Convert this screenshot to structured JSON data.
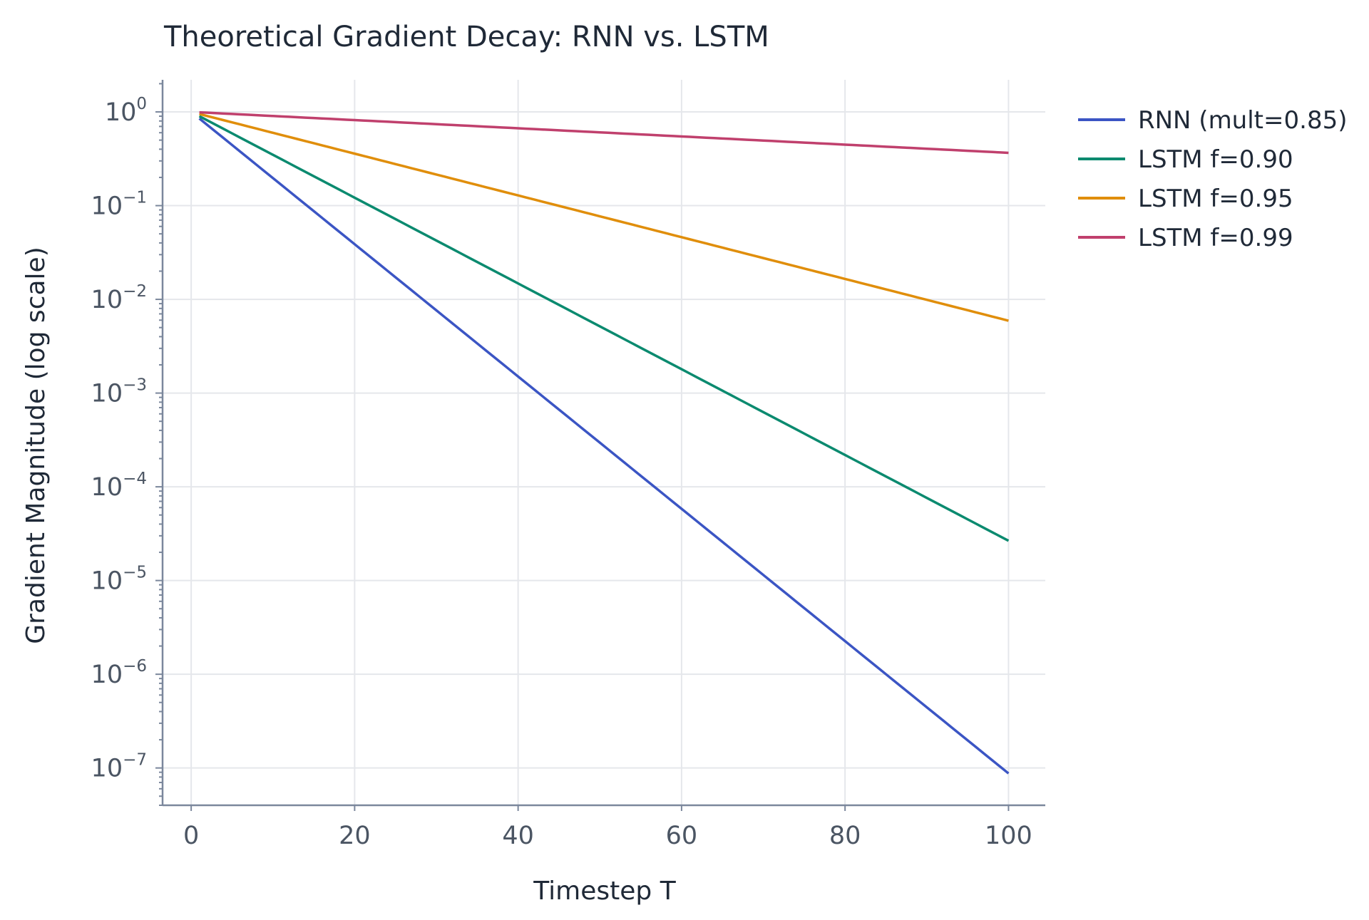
{
  "chart_data": {
    "type": "line",
    "title": "Theoretical Gradient Decay: RNN vs. LSTM",
    "xlabel": "Timestep T",
    "ylabel": "Gradient Magnitude (log scale)",
    "xlim": [
      -3.5,
      104.5
    ],
    "ylim": [
      4e-08,
      2.2
    ],
    "yscale": "log",
    "xticks": [
      "0",
      "20",
      "40",
      "60",
      "80",
      "100"
    ],
    "yticks": [
      {
        "base": "10",
        "exp": "0"
      },
      {
        "base": "10",
        "exp": "−1"
      },
      {
        "base": "10",
        "exp": "−2"
      },
      {
        "base": "10",
        "exp": "−3"
      },
      {
        "base": "10",
        "exp": "−4"
      },
      {
        "base": "10",
        "exp": "−5"
      },
      {
        "base": "10",
        "exp": "−6"
      },
      {
        "base": "10",
        "exp": "−7"
      }
    ],
    "grid": true,
    "legend_position": "outside-top-right",
    "x_range": [
      1,
      100
    ],
    "series": [
      {
        "name": "RNN (mult=0.85)",
        "color": "#3b55c4",
        "multiplier": 0.85
      },
      {
        "name": "LSTM f=0.90",
        "color": "#0b8a6f",
        "multiplier": 0.9
      },
      {
        "name": "LSTM f=0.95",
        "color": "#e08e0b",
        "multiplier": 0.95
      },
      {
        "name": "LSTM f=0.99",
        "color": "#c0406d",
        "multiplier": 0.99
      }
    ]
  }
}
